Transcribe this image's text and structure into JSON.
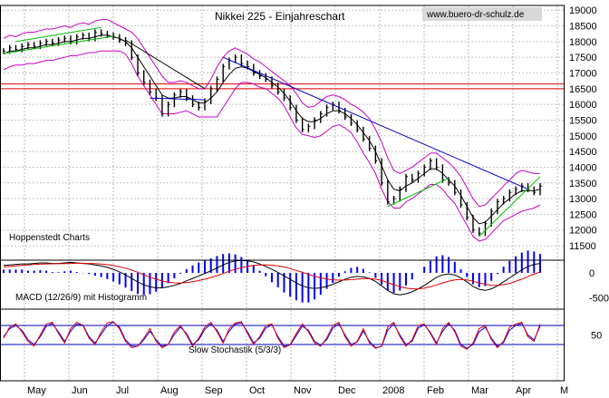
{
  "chart_data": {
    "type": "line",
    "title": "Nikkei 225 - Einjahreschart",
    "source": "www.buero-dr-schulz.de",
    "publisher": "Hoppenstedt Charts",
    "x_ticks": [
      "May",
      "Jun",
      "Jul",
      "Aug",
      "Sep",
      "Oct",
      "Nov",
      "Dec",
      "2008",
      "Feb",
      "Mar",
      "Apr",
      "M"
    ],
    "y_ticks": [
      11500,
      12000,
      12500,
      13000,
      13500,
      14000,
      14500,
      15000,
      15500,
      16000,
      16500,
      17000,
      17500,
      18000,
      18500,
      19000
    ],
    "ylim": [
      11300,
      19150
    ],
    "horizontal_levels": [
      16500,
      16650
    ],
    "series": [
      {
        "values": [
          17700,
          17800,
          17750,
          17850,
          17900,
          17850,
          17950,
          18000,
          17950,
          18050,
          18100,
          18000,
          18150,
          18200,
          18100,
          18300,
          18250,
          18200,
          18150,
          18050,
          17950,
          17500,
          17000,
          16700,
          16400,
          16200,
          15700,
          16000,
          16300,
          16400,
          16200,
          16000,
          15900,
          16100,
          16500,
          16800,
          17200,
          17400,
          17500,
          17300,
          17200,
          17000,
          16900,
          16800,
          16600,
          16400,
          16200,
          15900,
          15500,
          15200,
          15300,
          15500,
          15700,
          15900,
          16000,
          15800,
          15600,
          15400,
          15200,
          14900,
          14600,
          14200,
          13500,
          12900,
          13000,
          13300,
          13700,
          13600,
          13800,
          14000,
          14200,
          14000,
          13600,
          13500,
          13200,
          12800,
          12400,
          12000,
          11900,
          12200,
          12600,
          12900,
          13000,
          13200,
          13300,
          13400,
          13300,
          13200,
          13400
        ]
      },
      {
        "values": [
          17600,
          17700,
          17700,
          17750,
          17800,
          17800,
          17850,
          17900,
          17900,
          17950,
          18000,
          18000,
          18050,
          18100,
          18100,
          18150,
          18200,
          18200,
          18150,
          18100,
          18000,
          17800,
          17500,
          17200,
          16900,
          16600,
          16300,
          16200,
          16200,
          16250,
          16250,
          16150,
          16050,
          16050,
          16200,
          16400,
          16700,
          16950,
          17150,
          17200,
          17150,
          17050,
          16950,
          16850,
          16700,
          16550,
          16350,
          16100,
          15800,
          15550,
          15450,
          15450,
          15550,
          15700,
          15800,
          15800,
          15700,
          15550,
          15350,
          15100,
          14850,
          14500,
          14050,
          13600,
          13300,
          13250,
          13400,
          13500,
          13650,
          13800,
          13950,
          13950,
          13800,
          13600,
          13400,
          13100,
          12750,
          12400,
          12200,
          12250,
          12450,
          12650,
          12850,
          13000,
          13150,
          13250,
          13250,
          13250,
          13300
        ]
      },
      {
        "values": [
          18100,
          18200,
          18150,
          18250,
          18300,
          18300,
          18350,
          18400,
          18400,
          18450,
          18500,
          18450,
          18550,
          18600,
          18550,
          18650,
          18700,
          18700,
          18600,
          18500,
          18400,
          18300,
          18100,
          17800,
          17500,
          17200,
          16900,
          16700,
          16700,
          16750,
          16700,
          16600,
          16500,
          16500,
          16800,
          17200,
          17500,
          17700,
          17800,
          17700,
          17600,
          17450,
          17350,
          17200,
          17050,
          16900,
          16750,
          16600,
          16350,
          16050,
          15900,
          15950,
          16100,
          16250,
          16300,
          16250,
          16150,
          16000,
          15900,
          15750,
          15550,
          15200,
          14800,
          14300,
          13900,
          13800,
          13900,
          14000,
          14150,
          14300,
          14450,
          14450,
          14300,
          14150,
          13950,
          13700,
          13350,
          13000,
          12750,
          12800,
          13000,
          13200,
          13400,
          13600,
          13800,
          13900,
          13850,
          13800,
          13800
        ]
      },
      {
        "values": [
          17100,
          17200,
          17250,
          17250,
          17300,
          17300,
          17350,
          17400,
          17400,
          17450,
          17500,
          17550,
          17550,
          17600,
          17650,
          17650,
          17700,
          17700,
          17700,
          17700,
          17600,
          17300,
          16900,
          16600,
          16300,
          16000,
          15700,
          15700,
          15700,
          15750,
          15800,
          15700,
          15600,
          15600,
          15600,
          15600,
          15900,
          16200,
          16500,
          16700,
          16700,
          16650,
          16550,
          16500,
          16350,
          16200,
          15950,
          15600,
          15250,
          15050,
          15000,
          14950,
          15000,
          15150,
          15300,
          15350,
          15250,
          15100,
          14800,
          14450,
          14150,
          13800,
          13300,
          12900,
          12700,
          12700,
          12900,
          13000,
          13150,
          13300,
          13450,
          13450,
          13300,
          13050,
          12850,
          12500,
          12150,
          11800,
          11650,
          11700,
          11900,
          12100,
          12300,
          12400,
          12500,
          12600,
          12650,
          12700,
          12800
        ]
      }
    ],
    "macd": {
      "label": "MACD (12/26/9) mit Histogramm",
      "y_ticks": [
        0,
        -500
      ],
      "macd": [
        150,
        160,
        170,
        180,
        180,
        190,
        200,
        200,
        190,
        190,
        200,
        210,
        200,
        190,
        180,
        160,
        140,
        110,
        70,
        20,
        -40,
        -110,
        -180,
        -240,
        -280,
        -300,
        -300,
        -280,
        -250,
        -210,
        -160,
        -110,
        -60,
        -10,
        40,
        100,
        160,
        210,
        240,
        250,
        240,
        220,
        180,
        130,
        70,
        10,
        -60,
        -130,
        -200,
        -260,
        -300,
        -310,
        -300,
        -270,
        -230,
        -180,
        -130,
        -90,
        -70,
        -80,
        -110,
        -170,
        -260,
        -350,
        -420,
        -440,
        -420,
        -380,
        -320,
        -250,
        -170,
        -90,
        -40,
        -20,
        -40,
        -100,
        -180,
        -270,
        -330,
        -350,
        -320,
        -260,
        -180,
        -100,
        -20,
        60,
        130,
        170,
        190
      ],
      "signal": [
        120,
        130,
        140,
        150,
        160,
        170,
        175,
        180,
        182,
        184,
        186,
        190,
        192,
        192,
        190,
        185,
        178,
        166,
        148,
        124,
        94,
        56,
        12,
        -38,
        -86,
        -128,
        -162,
        -186,
        -200,
        -202,
        -194,
        -178,
        -154,
        -125,
        -92,
        -54,
        -12,
        32,
        72,
        105,
        131,
        150,
        160,
        161,
        155,
        141,
        119,
        88,
        50,
        10,
        -30,
        -68,
        -100,
        -124,
        -139,
        -146,
        -144,
        -136,
        -125,
        -116,
        -115,
        -126,
        -152,
        -192,
        -238,
        -278,
        -306,
        -320,
        -320,
        -306,
        -279,
        -241,
        -201,
        -165,
        -140,
        -132,
        -142,
        -167,
        -200,
        -230,
        -248,
        -250,
        -236,
        -209,
        -171,
        -125,
        -74,
        -25,
        18
      ]
    },
    "stochastic": {
      "label": "Slow Stochastik (5/3/3)",
      "y_ticks": [
        50
      ],
      "levels": [
        20,
        80
      ],
      "k": [
        40,
        75,
        85,
        60,
        30,
        15,
        50,
        85,
        90,
        55,
        25,
        70,
        90,
        80,
        40,
        20,
        60,
        88,
        92,
        70,
        30,
        10,
        15,
        40,
        70,
        30,
        10,
        20,
        60,
        80,
        50,
        15,
        40,
        75,
        90,
        60,
        25,
        70,
        88,
        92,
        55,
        20,
        45,
        80,
        85,
        40,
        10,
        20,
        55,
        85,
        60,
        25,
        15,
        40,
        80,
        90,
        45,
        15,
        30,
        70,
        25,
        8,
        15,
        75,
        90,
        45,
        15,
        35,
        80,
        85,
        55,
        20,
        70,
        90,
        60,
        15,
        5,
        25,
        70,
        80,
        35,
        10,
        30,
        75,
        85,
        90,
        45,
        30,
        85
      ],
      "d": [
        45,
        70,
        80,
        65,
        35,
        20,
        45,
        78,
        86,
        60,
        30,
        62,
        84,
        82,
        45,
        25,
        52,
        80,
        90,
        75,
        35,
        15,
        15,
        35,
        62,
        35,
        15,
        20,
        52,
        75,
        55,
        20,
        35,
        68,
        85,
        65,
        30,
        62,
        84,
        88,
        60,
        25,
        40,
        72,
        82,
        45,
        15,
        18,
        48,
        78,
        65,
        30,
        18,
        35,
        72,
        85,
        50,
        20,
        28,
        62,
        30,
        10,
        14,
        65,
        85,
        50,
        20,
        30,
        72,
        82,
        58,
        25,
        62,
        85,
        65,
        20,
        8,
        20,
        60,
        75,
        40,
        14,
        26,
        66,
        80,
        86,
        50,
        35,
        78
      ]
    }
  }
}
